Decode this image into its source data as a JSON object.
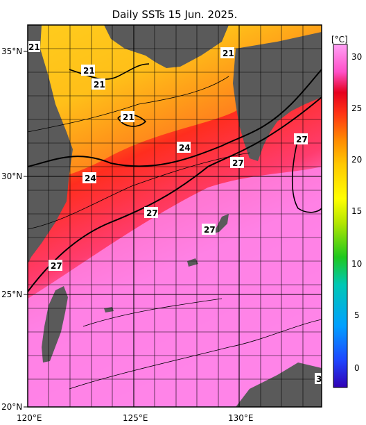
{
  "title": "Daily SSTs 15 Jun. 2025.",
  "axes": {
    "lon_ticks": [
      "120°E",
      "125°E",
      "130°E"
    ],
    "lat_ticks": [
      "35°N",
      "30°N",
      "25°N",
      "20°N"
    ]
  },
  "colorbar": {
    "unit": "[°C]",
    "ticks": [
      "30",
      "25",
      "20",
      "15",
      "10",
      "5",
      "0"
    ],
    "colors": [
      "#2a00c8",
      "#1e3cff",
      "#00a0ff",
      "#00c8a0",
      "#20c820",
      "#a0e000",
      "#ffff00",
      "#ffc800",
      "#ff8c00",
      "#ff3c14",
      "#e6001e",
      "#ff50c8",
      "#ff96f0"
    ]
  },
  "contours": [
    "21",
    "21",
    "21",
    "21",
    "21",
    "24",
    "24",
    "27",
    "27",
    "27",
    "27",
    "27",
    "3"
  ],
  "colors": {
    "land": "#5a5a5a",
    "grid": "#000000",
    "frame": "#000000"
  }
}
